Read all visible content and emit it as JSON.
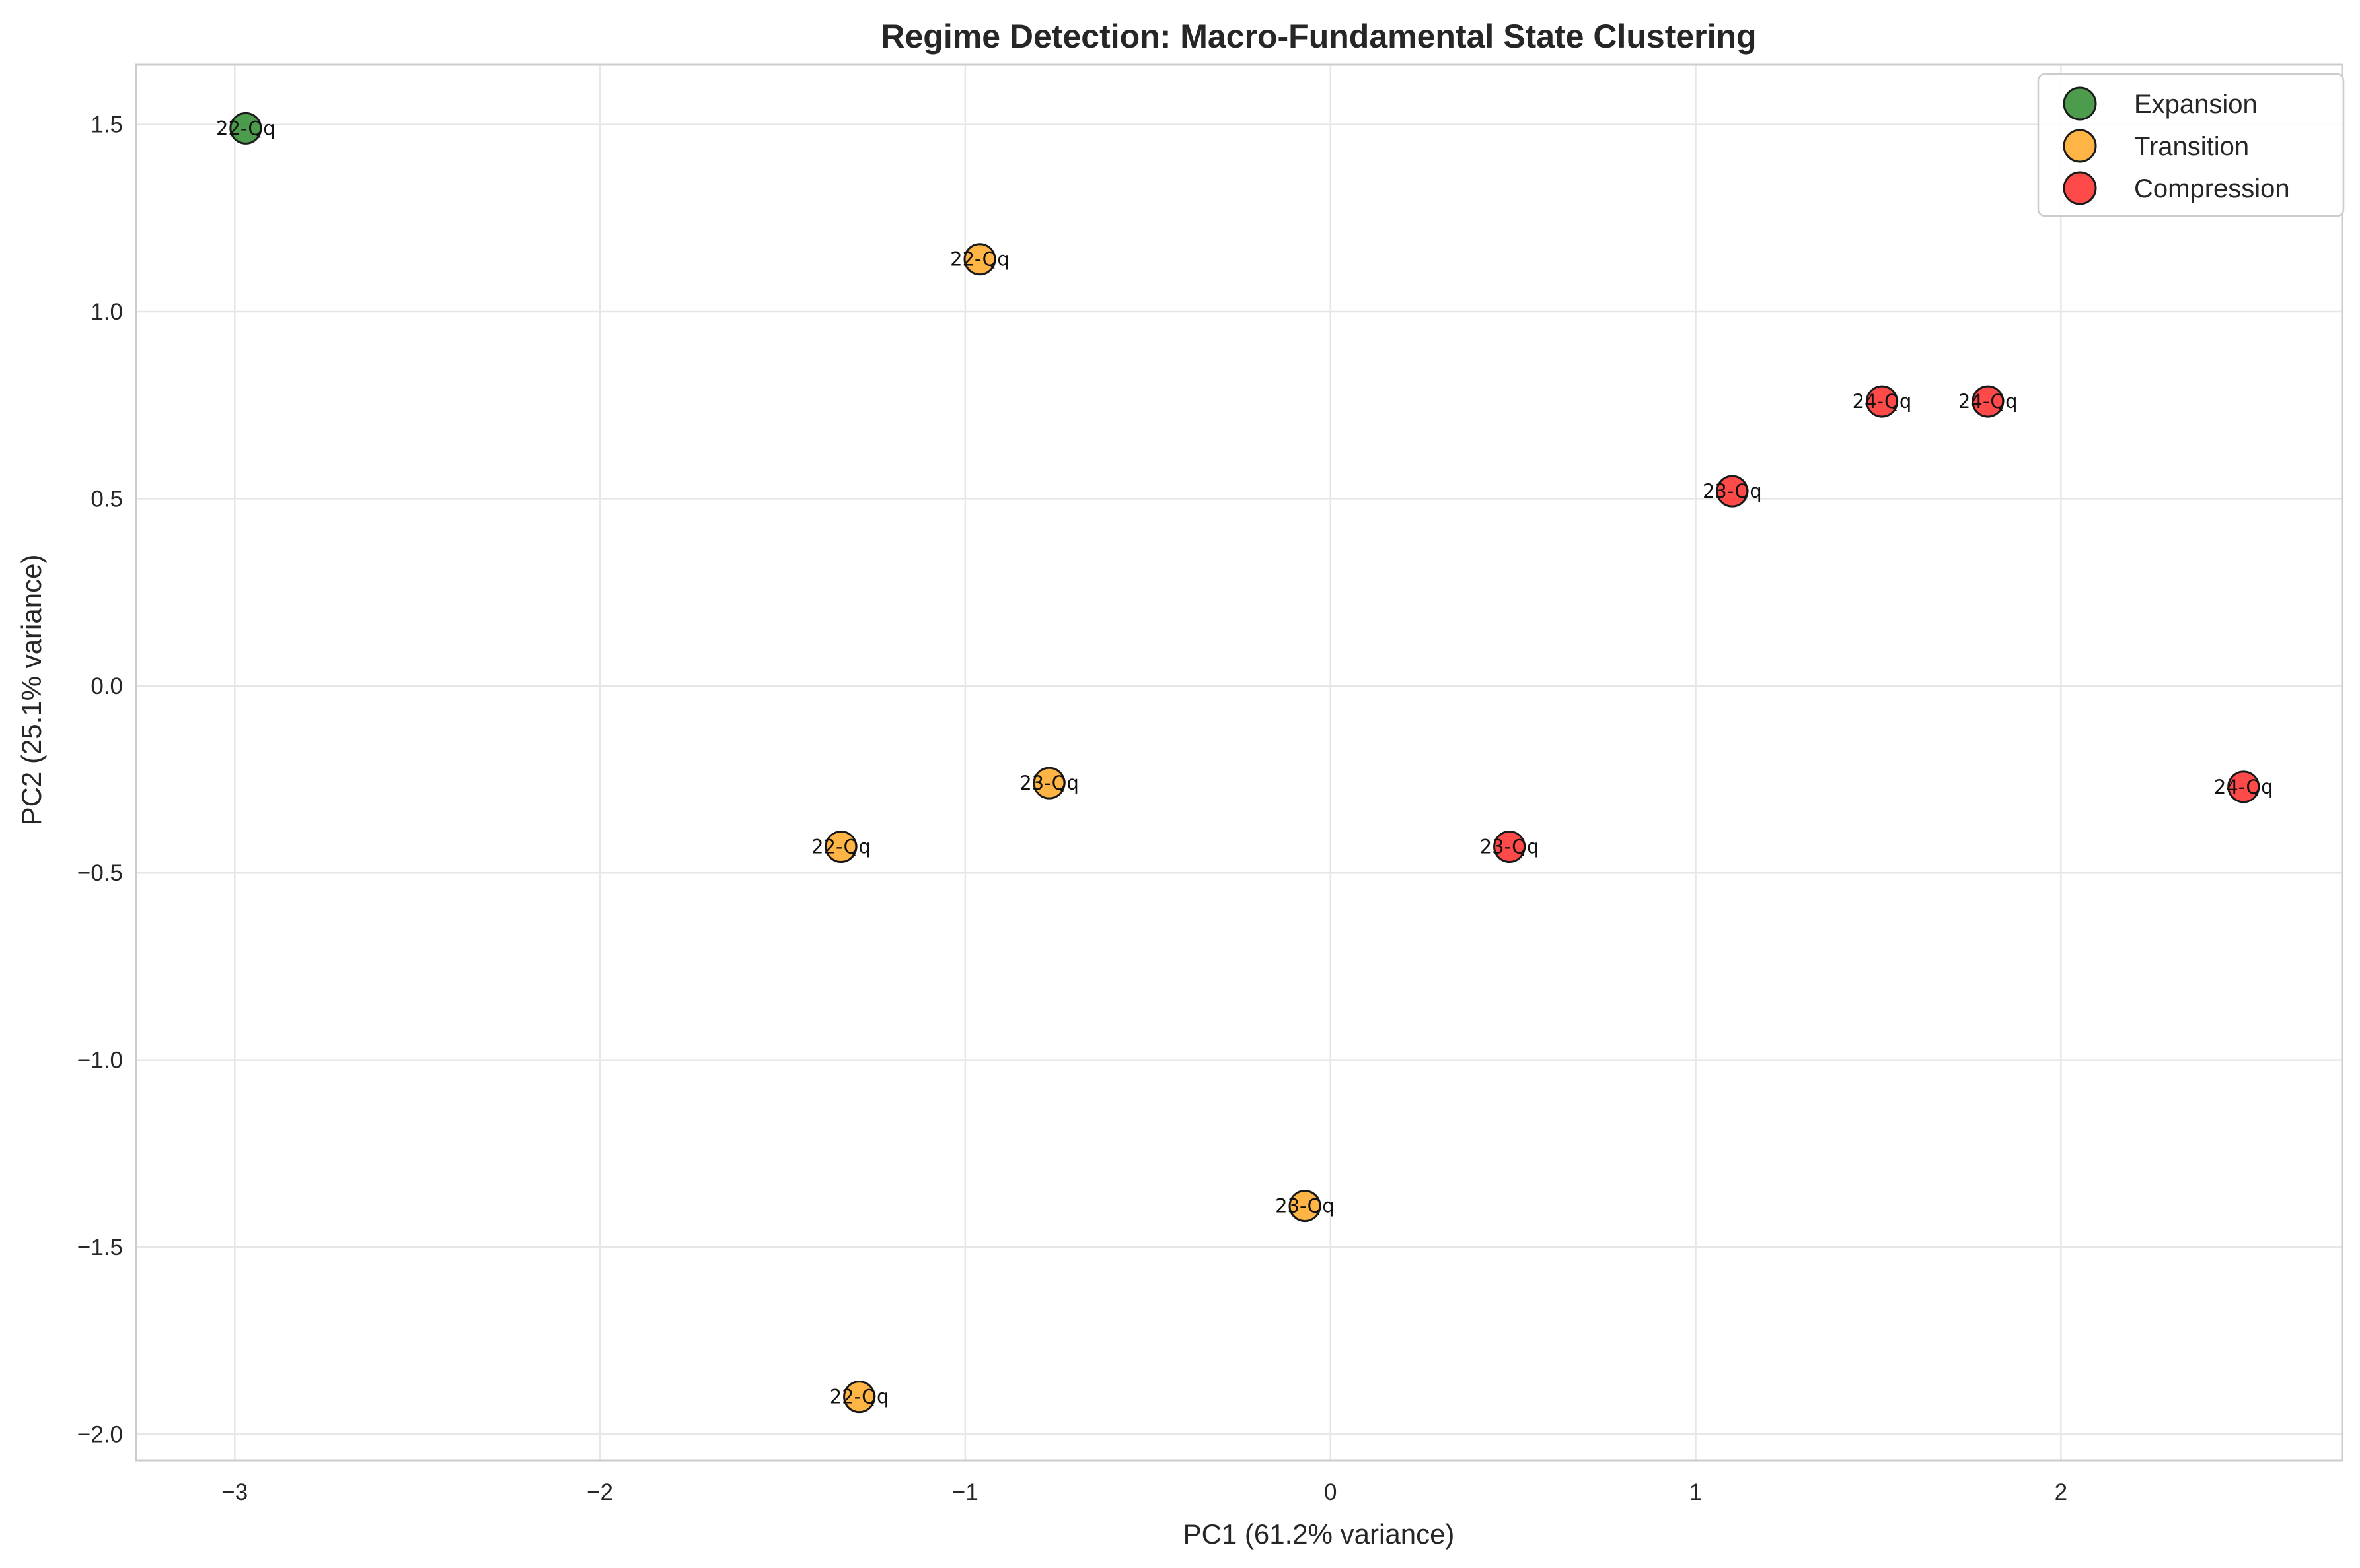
{
  "chart_data": {
    "type": "scatter",
    "title": "Regime Detection: Macro-Fundamental State Clustering",
    "xlabel": "PC1 (61.2% variance)",
    "ylabel": "PC2 (25.1% variance)",
    "xlim": [
      -3.27,
      2.77
    ],
    "ylim": [
      -2.07,
      1.66
    ],
    "xticks": [
      -3,
      -2,
      -1,
      0,
      1,
      2
    ],
    "yticks": [
      -2.0,
      -1.5,
      -1.0,
      -0.5,
      0.0,
      0.5,
      1.0,
      1.5
    ],
    "xtick_labels": [
      "−3",
      "−2",
      "−1",
      "0",
      "1",
      "2"
    ],
    "ytick_labels": [
      "−2.0",
      "−1.5",
      "−1.0",
      "−0.5",
      "0.0",
      "0.5",
      "1.0",
      "1.5"
    ],
    "grid": true,
    "legend_position": "top-right",
    "series": [
      {
        "name": "Expansion",
        "color": "#2e8b2e",
        "points": [
          {
            "x": -2.97,
            "y": 1.49,
            "label": "22-Qq"
          }
        ]
      },
      {
        "name": "Transition",
        "color": "#ffa726",
        "points": [
          {
            "x": -0.96,
            "y": 1.14,
            "label": "22-Qq"
          },
          {
            "x": -0.77,
            "y": -0.26,
            "label": "23-Qq"
          },
          {
            "x": -1.34,
            "y": -0.43,
            "label": "22-Qq"
          },
          {
            "x": -0.07,
            "y": -1.39,
            "label": "23-Qq"
          },
          {
            "x": -1.29,
            "y": -1.9,
            "label": "22-Qq"
          }
        ]
      },
      {
        "name": "Compression",
        "color": "#ff2a2a",
        "points": [
          {
            "x": 1.51,
            "y": 0.76,
            "label": "24-Qq"
          },
          {
            "x": 1.8,
            "y": 0.76,
            "label": "24-Qq"
          },
          {
            "x": 1.1,
            "y": 0.52,
            "label": "23-Qq"
          },
          {
            "x": 0.49,
            "y": -0.43,
            "label": "23-Qq"
          },
          {
            "x": 2.5,
            "y": -0.27,
            "label": "24-Qq"
          }
        ]
      }
    ]
  }
}
